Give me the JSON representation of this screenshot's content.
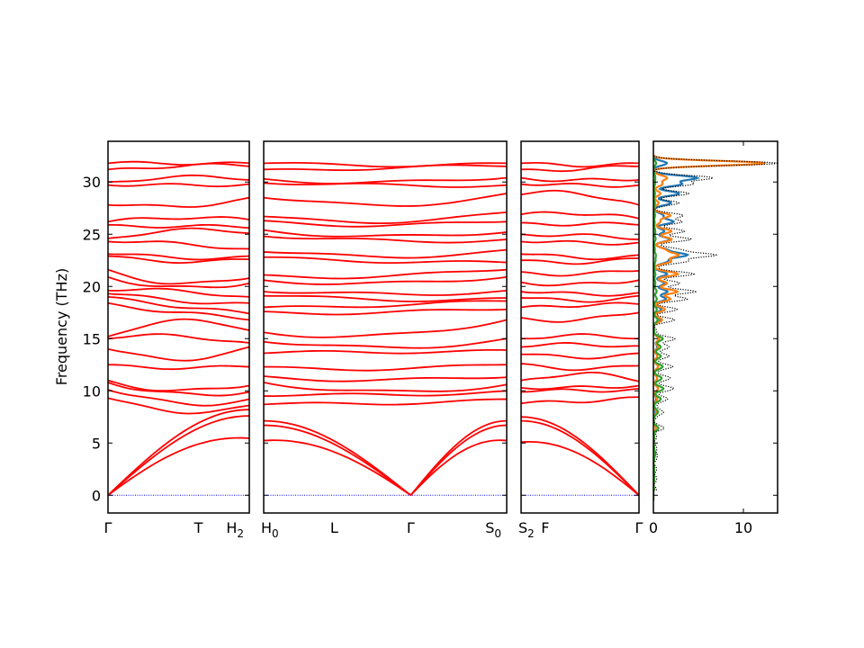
{
  "chart_data": {
    "type": "line",
    "ylabel": "Frequency (THz)",
    "ylim": [
      -1.7,
      33.9
    ],
    "y_ticks": [
      0,
      5,
      10,
      15,
      20,
      25,
      30
    ],
    "grid": false,
    "colors": {
      "bands": "#ff0000",
      "zero_line": "#0000ff",
      "frame": "#000000"
    },
    "panels": [
      {
        "name": "path-1",
        "xlim": [
          0,
          1
        ],
        "x_ticks": [
          {
            "at": 0.0,
            "label": "Γ"
          },
          {
            "at": 0.64,
            "label": "T"
          },
          {
            "at": 1.0,
            "label": "H",
            "sub": "2"
          }
        ]
      },
      {
        "name": "path-2",
        "xlim": [
          0,
          1
        ],
        "x_ticks": [
          {
            "at": 0.0,
            "label": "H",
            "sub": "0"
          },
          {
            "at": 0.29,
            "label": "L"
          },
          {
            "at": 0.605,
            "label": "Γ"
          },
          {
            "at": 1.0,
            "label": "S",
            "sub": "0"
          }
        ]
      },
      {
        "name": "path-3",
        "xlim": [
          0,
          1
        ],
        "x_ticks": [
          {
            "at": 0.0,
            "label": "S",
            "sub": "2"
          },
          {
            "at": 0.205,
            "label": "F"
          },
          {
            "at": 1.0,
            "label": "Γ"
          }
        ]
      }
    ],
    "dos_panel": {
      "xlim": [
        0,
        13.8
      ],
      "x_ticks": [
        0,
        10
      ],
      "series": [
        {
          "color": "#1f77b4"
        },
        {
          "color": "#ff7f0e"
        },
        {
          "color": "#2ca02c"
        },
        {
          "color": "#000000",
          "style": "dotted"
        }
      ]
    },
    "band_levels": {
      "path-1": [
        [
          31.8,
          31.9,
          31.8
        ],
        [
          31.2,
          31.6,
          31.5
        ],
        [
          30.0,
          30.4,
          30.2
        ],
        [
          29.7,
          29.6,
          29.8
        ],
        [
          27.8,
          27.7,
          28.5
        ],
        [
          26.2,
          26.7,
          26.4
        ],
        [
          25.9,
          25.8,
          25.6
        ],
        [
          24.6,
          25.3,
          25.1
        ],
        [
          24.3,
          24.0,
          23.6
        ],
        [
          23.1,
          22.8,
          22.9
        ],
        [
          22.9,
          22.5,
          22.6
        ],
        [
          21.6,
          20.3,
          20.8
        ],
        [
          20.9,
          19.8,
          20.3
        ],
        [
          19.6,
          19.5,
          19.0
        ],
        [
          19.3,
          18.7,
          18.4
        ],
        [
          19.0,
          18.2,
          17.4
        ],
        [
          18.4,
          17.5,
          16.8
        ],
        [
          15.2,
          16.6,
          15.8
        ],
        [
          15.0,
          15.2,
          14.6
        ],
        [
          14.0,
          13.1,
          14.2
        ],
        [
          12.5,
          12.3,
          12.3
        ],
        [
          11.0,
          10.0,
          10.5
        ],
        [
          10.8,
          9.6,
          9.9
        ],
        [
          10.1,
          8.8,
          9.2
        ],
        [
          9.3,
          8.1,
          8.6
        ]
      ],
      "path-2": [
        [
          31.8,
          31.7,
          31.8
        ],
        [
          31.2,
          31.4,
          31.5
        ],
        [
          30.3,
          29.9,
          30.4
        ],
        [
          29.9,
          29.6,
          29.7
        ],
        [
          28.5,
          27.8,
          28.9
        ],
        [
          26.7,
          26.3,
          27.1
        ],
        [
          26.3,
          25.9,
          26.2
        ],
        [
          25.4,
          24.7,
          25.2
        ],
        [
          24.8,
          24.3,
          24.5
        ],
        [
          23.3,
          22.9,
          23.5
        ],
        [
          22.8,
          22.5,
          22.3
        ],
        [
          21.1,
          21.0,
          21.6
        ],
        [
          20.6,
          20.2,
          20.9
        ],
        [
          19.5,
          19.2,
          19.6
        ],
        [
          19.1,
          18.8,
          18.9
        ],
        [
          18.0,
          18.3,
          18.6
        ],
        [
          17.6,
          17.5,
          17.8
        ],
        [
          15.6,
          15.2,
          16.8
        ],
        [
          14.7,
          14.1,
          15.0
        ],
        [
          13.6,
          13.8,
          13.9
        ],
        [
          12.3,
          12.2,
          12.5
        ],
        [
          11.4,
          11.0,
          11.3
        ],
        [
          10.8,
          9.8,
          10.6
        ],
        [
          9.5,
          9.6,
          10.0
        ],
        [
          8.7,
          8.9,
          9.2
        ]
      ],
      "path-3": [
        [
          31.8,
          31.7,
          31.8
        ],
        [
          31.2,
          31.3,
          31.5
        ],
        [
          30.4,
          30.1,
          30.2
        ],
        [
          29.8,
          29.6,
          29.7
        ],
        [
          28.8,
          28.9,
          27.8
        ],
        [
          26.9,
          27.1,
          26.5
        ],
        [
          26.1,
          26.0,
          25.9
        ],
        [
          25.0,
          24.8,
          24.5
        ],
        [
          24.3,
          24.1,
          24.2
        ],
        [
          23.1,
          22.8,
          23.0
        ],
        [
          22.5,
          22.4,
          22.7
        ],
        [
          21.4,
          21.2,
          21.5
        ],
        [
          20.4,
          20.1,
          20.6
        ],
        [
          19.5,
          19.2,
          19.4
        ],
        [
          18.9,
          18.7,
          19.1
        ],
        [
          18.0,
          18.3,
          18.3
        ],
        [
          17.0,
          16.8,
          17.5
        ],
        [
          15.0,
          15.2,
          15.0
        ],
        [
          14.2,
          14.4,
          14.3
        ],
        [
          13.5,
          13.3,
          13.6
        ],
        [
          12.6,
          12.2,
          12.4
        ],
        [
          11.0,
          11.6,
          10.9
        ],
        [
          10.3,
          10.2,
          10.5
        ],
        [
          9.9,
          10.0,
          10.2
        ],
        [
          8.8,
          9.1,
          9.4
        ]
      ]
    },
    "acoustic_top": {
      "path-1": [
        7.3,
        8.0,
        8.2
      ],
      "path-2": [
        7.0,
        7.5,
        6.7
      ],
      "path-3": [
        6.8,
        7.5,
        7.5
      ]
    },
    "dos_peaks": [
      {
        "f": 31.8,
        "total": 13.8,
        "s1": 1.5,
        "s2": 12.5,
        "s3": 0.3
      },
      {
        "f": 30.4,
        "total": 6.5,
        "s1": 4.8,
        "s2": 1.5,
        "s3": 0.2
      },
      {
        "f": 29.8,
        "total": 4.0,
        "s1": 3.0,
        "s2": 0.9,
        "s3": 0.1
      },
      {
        "f": 28.9,
        "total": 3.6,
        "s1": 2.8,
        "s2": 0.7,
        "s3": 0.1
      },
      {
        "f": 28.0,
        "total": 2.5,
        "s1": 1.9,
        "s2": 0.5,
        "s3": 0.1
      },
      {
        "f": 26.8,
        "total": 2.9,
        "s1": 1.0,
        "s2": 1.8,
        "s3": 0.1
      },
      {
        "f": 26.2,
        "total": 3.0,
        "s1": 2.2,
        "s2": 0.7,
        "s3": 0.1
      },
      {
        "f": 25.3,
        "total": 3.4,
        "s1": 1.2,
        "s2": 2.0,
        "s3": 0.2
      },
      {
        "f": 24.5,
        "total": 4.0,
        "s1": 1.8,
        "s2": 2.0,
        "s3": 0.2
      },
      {
        "f": 23.5,
        "total": 2.6,
        "s1": 1.3,
        "s2": 1.2,
        "s3": 0.1
      },
      {
        "f": 23.0,
        "total": 6.4,
        "s1": 3.6,
        "s2": 2.6,
        "s3": 0.2
      },
      {
        "f": 22.4,
        "total": 3.6,
        "s1": 1.5,
        "s2": 1.9,
        "s3": 0.2
      },
      {
        "f": 21.2,
        "total": 4.4,
        "s1": 1.5,
        "s2": 2.7,
        "s3": 0.2
      },
      {
        "f": 20.3,
        "total": 2.9,
        "s1": 1.2,
        "s2": 1.5,
        "s3": 0.2
      },
      {
        "f": 19.5,
        "total": 4.4,
        "s1": 1.5,
        "s2": 2.6,
        "s3": 0.3
      },
      {
        "f": 18.8,
        "total": 3.4,
        "s1": 1.3,
        "s2": 1.8,
        "s3": 0.3
      },
      {
        "f": 17.8,
        "total": 2.3,
        "s1": 0.8,
        "s2": 1.2,
        "s3": 0.3
      },
      {
        "f": 16.8,
        "total": 2.0,
        "s1": 0.7,
        "s2": 0.9,
        "s3": 0.4
      },
      {
        "f": 15.0,
        "total": 2.2,
        "s1": 0.6,
        "s2": 0.6,
        "s3": 1.0
      },
      {
        "f": 14.2,
        "total": 1.7,
        "s1": 0.4,
        "s2": 0.5,
        "s3": 0.8
      },
      {
        "f": 13.3,
        "total": 1.6,
        "s1": 0.4,
        "s2": 0.4,
        "s3": 0.8
      },
      {
        "f": 12.3,
        "total": 2.0,
        "s1": 0.5,
        "s2": 0.5,
        "s3": 1.0
      },
      {
        "f": 11.2,
        "total": 1.8,
        "s1": 0.4,
        "s2": 0.4,
        "s3": 0.9
      },
      {
        "f": 10.2,
        "total": 2.2,
        "s1": 0.5,
        "s2": 0.5,
        "s3": 1.1
      },
      {
        "f": 9.2,
        "total": 1.5,
        "s1": 0.3,
        "s2": 0.4,
        "s3": 0.8
      },
      {
        "f": 8.0,
        "total": 1.0,
        "s1": 0.2,
        "s2": 0.3,
        "s3": 0.5
      },
      {
        "f": 6.4,
        "total": 0.9,
        "s1": 0.2,
        "s2": 0.2,
        "s3": 0.5
      },
      {
        "f": 4.0,
        "total": 0.3,
        "s1": 0.05,
        "s2": 0.05,
        "s3": 0.2
      },
      {
        "f": 2.0,
        "total": 0.1,
        "s1": 0.02,
        "s2": 0.02,
        "s3": 0.06
      }
    ]
  }
}
